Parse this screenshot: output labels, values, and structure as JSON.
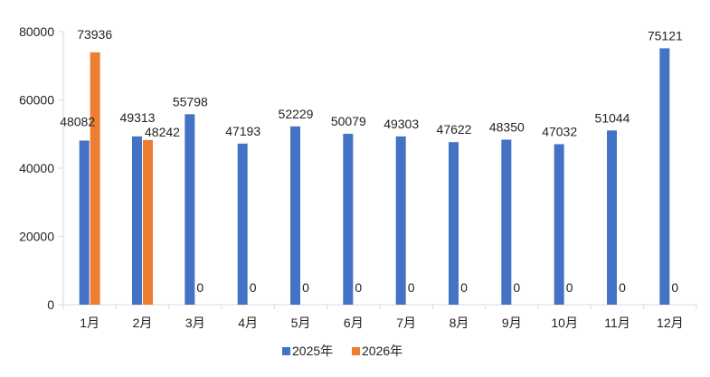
{
  "chart_data": {
    "type": "bar",
    "title": "",
    "xlabel": "",
    "ylabel": "",
    "categories": [
      "1月",
      "2月",
      "3月",
      "4月",
      "5月",
      "6月",
      "7月",
      "8月",
      "9月",
      "10月",
      "11月",
      "12月"
    ],
    "series": [
      {
        "name": "2025年",
        "color": "#4472C4",
        "values": [
          48082,
          49313,
          55798,
          47193,
          52229,
          50079,
          49303,
          47622,
          48350,
          47032,
          51044,
          75121
        ]
      },
      {
        "name": "2026年",
        "color": "#ED7D31",
        "values": [
          73936,
          48242,
          0,
          0,
          0,
          0,
          0,
          0,
          0,
          0,
          0,
          0
        ]
      }
    ],
    "ylim": [
      0,
      80000
    ],
    "yticks": [
      0,
      20000,
      40000,
      60000,
      80000
    ],
    "grid": false,
    "legend": "bottom"
  }
}
